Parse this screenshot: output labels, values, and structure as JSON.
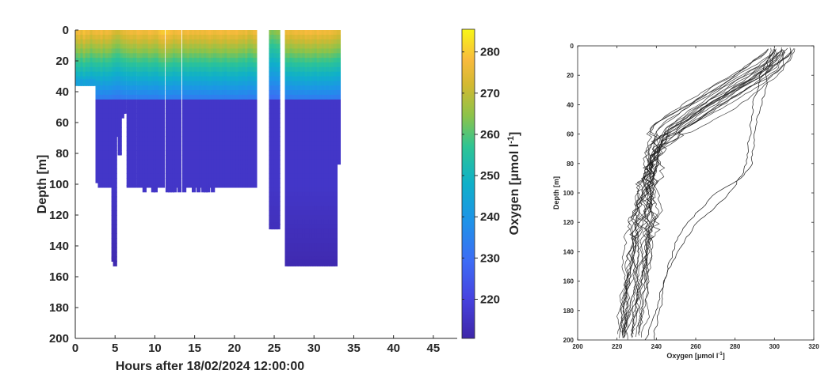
{
  "chart_data": [
    {
      "type": "heatmap",
      "subtype": "scatter-section",
      "title": "",
      "xlabel": "Hours after 18/02/2024 12:00:00",
      "ylabel": "Depth [m]",
      "xlim": [
        0,
        48
      ],
      "ylim": [
        200,
        0
      ],
      "x_ticks": [
        0,
        5,
        10,
        15,
        20,
        25,
        30,
        35,
        40,
        45
      ],
      "y_ticks": [
        0,
        20,
        40,
        60,
        80,
        100,
        120,
        140,
        160,
        180,
        200
      ],
      "grid": false,
      "colorbar": {
        "label": "Oxygen [μmol l⁻¹]",
        "range": [
          210.5,
          285.5
        ],
        "ticks": [
          220,
          230,
          240,
          250,
          260,
          270,
          280
        ],
        "colormap": "parula"
      },
      "profiles": [
        {
          "t": 0.3,
          "max_depth": 33,
          "surface_o2": 276
        },
        {
          "t": 0.6,
          "max_depth": 33,
          "surface_o2": 278
        },
        {
          "t": 0.9,
          "max_depth": 33,
          "surface_o2": 275
        },
        {
          "t": 1.2,
          "max_depth": 33,
          "surface_o2": 279
        },
        {
          "t": 1.5,
          "max_depth": 33,
          "surface_o2": 276
        },
        {
          "t": 1.8,
          "max_depth": 33,
          "surface_o2": 277
        },
        {
          "t": 2.1,
          "max_depth": 33,
          "surface_o2": 274
        },
        {
          "t": 2.4,
          "max_depth": 33,
          "surface_o2": 276
        },
        {
          "t": 2.8,
          "max_depth": 98,
          "surface_o2": 277
        },
        {
          "t": 3.1,
          "max_depth": 101,
          "surface_o2": 276
        },
        {
          "t": 3.4,
          "max_depth": 101,
          "surface_o2": 278
        },
        {
          "t": 3.7,
          "max_depth": 101,
          "surface_o2": 275
        },
        {
          "t": 4.0,
          "max_depth": 100,
          "surface_o2": 277
        },
        {
          "t": 4.4,
          "max_depth": 101,
          "surface_o2": 276
        },
        {
          "t": 4.8,
          "max_depth": 148,
          "surface_o2": 274
        },
        {
          "t": 5.0,
          "max_depth": 150,
          "surface_o2": 273
        },
        {
          "t": 5.3,
          "max_depth": 67,
          "surface_o2": 272
        },
        {
          "t": 5.6,
          "max_depth": 80,
          "surface_o2": 272
        },
        {
          "t": 5.9,
          "max_depth": 55,
          "surface_o2": 274
        },
        {
          "t": 6.2,
          "max_depth": 53,
          "surface_o2": 275
        },
        {
          "t": 6.7,
          "max_depth": 101,
          "surface_o2": 276
        },
        {
          "t": 7.1,
          "max_depth": 101,
          "surface_o2": 277
        },
        {
          "t": 7.5,
          "max_depth": 101,
          "surface_o2": 276
        },
        {
          "t": 8.0,
          "max_depth": 101,
          "surface_o2": 278
        },
        {
          "t": 8.4,
          "max_depth": 99,
          "surface_o2": 277
        },
        {
          "t": 8.7,
          "max_depth": 102,
          "surface_o2": 276
        },
        {
          "t": 9.0,
          "max_depth": 101,
          "surface_o2": 276
        },
        {
          "t": 9.4,
          "max_depth": 101,
          "surface_o2": 278
        },
        {
          "t": 9.8,
          "max_depth": 102,
          "surface_o2": 277
        },
        {
          "t": 10.1,
          "max_depth": 102,
          "surface_o2": 276
        },
        {
          "t": 10.4,
          "max_depth": 101,
          "surface_o2": 276
        },
        {
          "t": 10.7,
          "max_depth": 101,
          "surface_o2": 279
        },
        {
          "t": 11.0,
          "max_depth": 101,
          "surface_o2": 280
        },
        {
          "t": 11.6,
          "max_depth": 102,
          "surface_o2": 280
        },
        {
          "t": 11.9,
          "max_depth": 102,
          "surface_o2": 279
        },
        {
          "t": 12.2,
          "max_depth": 102,
          "surface_o2": 278
        },
        {
          "t": 12.5,
          "max_depth": 102,
          "surface_o2": 276
        },
        {
          "t": 12.8,
          "max_depth": 101,
          "surface_o2": 277
        },
        {
          "t": 13.1,
          "max_depth": 102,
          "surface_o2": 278
        },
        {
          "t": 13.7,
          "max_depth": 102,
          "surface_o2": 276
        },
        {
          "t": 14.0,
          "max_depth": 101,
          "surface_o2": 277
        },
        {
          "t": 14.3,
          "max_depth": 101,
          "surface_o2": 278
        },
        {
          "t": 14.6,
          "max_depth": 101,
          "surface_o2": 276
        },
        {
          "t": 14.9,
          "max_depth": 102,
          "surface_o2": 277
        },
        {
          "t": 15.2,
          "max_depth": 101,
          "surface_o2": 276
        },
        {
          "t": 15.5,
          "max_depth": 102,
          "surface_o2": 277
        },
        {
          "t": 15.8,
          "max_depth": 101,
          "surface_o2": 276
        },
        {
          "t": 16.1,
          "max_depth": 103,
          "surface_o2": 277
        },
        {
          "t": 16.4,
          "max_depth": 102,
          "surface_o2": 276
        },
        {
          "t": 16.7,
          "max_depth": 102,
          "surface_o2": 277
        },
        {
          "t": 17.0,
          "max_depth": 101,
          "surface_o2": 278
        },
        {
          "t": 17.3,
          "max_depth": 102,
          "surface_o2": 277
        },
        {
          "t": 17.6,
          "max_depth": 101,
          "surface_o2": 276
        },
        {
          "t": 18.0,
          "max_depth": 101,
          "surface_o2": 277
        },
        {
          "t": 18.4,
          "max_depth": 101,
          "surface_o2": 278
        },
        {
          "t": 18.7,
          "max_depth": 101,
          "surface_o2": 277
        },
        {
          "t": 19.0,
          "max_depth": 101,
          "surface_o2": 276
        },
        {
          "t": 19.3,
          "max_depth": 101,
          "surface_o2": 278
        },
        {
          "t": 19.7,
          "max_depth": 101,
          "surface_o2": 277
        },
        {
          "t": 20.0,
          "max_depth": 101,
          "surface_o2": 277
        },
        {
          "t": 20.4,
          "max_depth": 101,
          "surface_o2": 278
        },
        {
          "t": 20.7,
          "max_depth": 101,
          "surface_o2": 276
        },
        {
          "t": 21.0,
          "max_depth": 100,
          "surface_o2": 276
        },
        {
          "t": 21.3,
          "max_depth": 101,
          "surface_o2": 275
        },
        {
          "t": 21.6,
          "max_depth": 101,
          "surface_o2": 277
        },
        {
          "t": 21.9,
          "max_depth": 101,
          "surface_o2": 274
        },
        {
          "t": 22.3,
          "max_depth": 101,
          "surface_o2": 275
        },
        {
          "t": 22.6,
          "max_depth": 100,
          "surface_o2": 277
        },
        {
          "t": 24.6,
          "max_depth": 126,
          "surface_o2": 264
        },
        {
          "t": 24.9,
          "max_depth": 126,
          "surface_o2": 263
        },
        {
          "t": 25.2,
          "max_depth": 126,
          "surface_o2": 264
        },
        {
          "t": 25.5,
          "max_depth": 126,
          "surface_o2": 265
        },
        {
          "t": 26.6,
          "max_depth": 150,
          "surface_o2": 276
        },
        {
          "t": 26.9,
          "max_depth": 150,
          "surface_o2": 277
        },
        {
          "t": 27.2,
          "max_depth": 151,
          "surface_o2": 275
        },
        {
          "t": 27.5,
          "max_depth": 150,
          "surface_o2": 276
        },
        {
          "t": 27.8,
          "max_depth": 150,
          "surface_o2": 277
        },
        {
          "t": 28.2,
          "max_depth": 150,
          "surface_o2": 276
        },
        {
          "t": 28.5,
          "max_depth": 150,
          "surface_o2": 277
        },
        {
          "t": 28.8,
          "max_depth": 150,
          "surface_o2": 276
        },
        {
          "t": 29.1,
          "max_depth": 150,
          "surface_o2": 278
        },
        {
          "t": 29.4,
          "max_depth": 150,
          "surface_o2": 277
        },
        {
          "t": 29.7,
          "max_depth": 150,
          "surface_o2": 278
        },
        {
          "t": 30.0,
          "max_depth": 150,
          "surface_o2": 277
        },
        {
          "t": 30.3,
          "max_depth": 150,
          "surface_o2": 276
        },
        {
          "t": 30.6,
          "max_depth": 150,
          "surface_o2": 278
        },
        {
          "t": 30.9,
          "max_depth": 150,
          "surface_o2": 277
        },
        {
          "t": 31.2,
          "max_depth": 150,
          "surface_o2": 276
        },
        {
          "t": 31.5,
          "max_depth": 150,
          "surface_o2": 277
        },
        {
          "t": 31.8,
          "max_depth": 150,
          "surface_o2": 276
        },
        {
          "t": 32.1,
          "max_depth": 150,
          "surface_o2": 277
        },
        {
          "t": 32.4,
          "max_depth": 150,
          "surface_o2": 276
        },
        {
          "t": 32.7,
          "max_depth": 150,
          "surface_o2": 275
        },
        {
          "t": 33.1,
          "max_depth": 85,
          "surface_o2": 274
        }
      ]
    },
    {
      "type": "line",
      "title": "",
      "xlabel": "Oxygen [μmol l⁻¹]",
      "ylabel": "Depth [m]",
      "xlim": [
        200,
        320
      ],
      "ylim": [
        200,
        0
      ],
      "x_ticks": [
        200,
        220,
        240,
        260,
        280,
        300,
        320
      ],
      "y_ticks": [
        0,
        20,
        40,
        60,
        80,
        100,
        120,
        140,
        160,
        180,
        200
      ],
      "grid": false,
      "line_color": "#1a1a1a",
      "series_count": 24,
      "mean_profile": {
        "depth": [
          0,
          10,
          20,
          30,
          40,
          50,
          60,
          70,
          80,
          100,
          120,
          140,
          160,
          180,
          200
        ],
        "oxygen": [
          305,
          302,
          292,
          280,
          268,
          256,
          245,
          240,
          238,
          236,
          234,
          232,
          230,
          228,
          226
        ]
      },
      "outlier_profiles": [
        {
          "depth": [
            0,
            10,
            20,
            30,
            40,
            60,
            80,
            100,
            120,
            140,
            160,
            180,
            200
          ],
          "oxygen": [
            300,
            297,
            293,
            292,
            290,
            288,
            286,
            278,
            262,
            250,
            243,
            239,
            235
          ]
        },
        {
          "depth": [
            0,
            10,
            20,
            30,
            40,
            60,
            80,
            90,
            100,
            120,
            140,
            160,
            180,
            200
          ],
          "oxygen": [
            302,
            299,
            296,
            294,
            292,
            290,
            289,
            282,
            268,
            256,
            248,
            244,
            241,
            238
          ]
        }
      ]
    }
  ],
  "left_chart": {
    "x_tick_labels": [
      "0",
      "5",
      "10",
      "15",
      "20",
      "25",
      "30",
      "35",
      "40",
      "45"
    ],
    "y_tick_labels": [
      "0",
      "20",
      "40",
      "60",
      "80",
      "100",
      "120",
      "140",
      "160",
      "180",
      "200"
    ],
    "xlabel": "Hours after 18/02/2024 12:00:00",
    "ylabel": "Depth [m]",
    "colorbar_tick_labels": [
      "280",
      "270",
      "260",
      "250",
      "240",
      "230",
      "220"
    ],
    "colorbar_label": "Oxygen [μmol l",
    "colorbar_label_sup": "-1",
    "colorbar_label_end": "]"
  },
  "right_chart": {
    "x_tick_labels": [
      "200",
      "220",
      "240",
      "260",
      "280",
      "300",
      "320"
    ],
    "y_tick_labels": [
      "0",
      "20",
      "40",
      "60",
      "80",
      "100",
      "120",
      "140",
      "160",
      "180",
      "200"
    ],
    "xlabel": "Oxygen [μmol l",
    "xlabel_sup": "-1",
    "xlabel_end": "]",
    "ylabel": "Depth [m]"
  }
}
